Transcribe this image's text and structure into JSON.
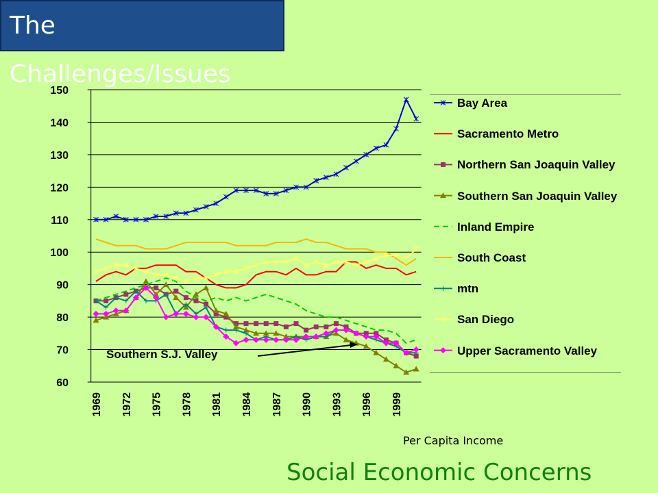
{
  "slide_title": "The Challenges/Issues",
  "footer": "Social Economic Concerns",
  "chart_data": {
    "type": "line",
    "title": "Per Capita Income",
    "categories": [
      "1969",
      null,
      null,
      "1972",
      null,
      null,
      "1975",
      null,
      null,
      "1978",
      null,
      null,
      "1981",
      null,
      null,
      "1984",
      null,
      null,
      "1987",
      null,
      null,
      "1990",
      null,
      null,
      "1993",
      null,
      null,
      "1996",
      null,
      null,
      "1999",
      null,
      null
    ],
    "ylim": [
      60,
      150
    ],
    "yticks": [
      60,
      70,
      80,
      90,
      100,
      110,
      120,
      130,
      140,
      150
    ],
    "grid": true,
    "annotations": [
      {
        "text": "Southern S.J. Valley"
      }
    ],
    "series": [
      {
        "name": "Bay Area",
        "color": "#0000cc",
        "marker": "star",
        "values": [
          110,
          110,
          111,
          110,
          110,
          110,
          111,
          111,
          112,
          112,
          113,
          114,
          115,
          117,
          119,
          119,
          119,
          118,
          118,
          119,
          120,
          120,
          122,
          123,
          124,
          126,
          128,
          130,
          132,
          133,
          138,
          147,
          141
        ]
      },
      {
        "name": "Sacramento Metro",
        "color": "#ff0000",
        "marker": "none",
        "values": [
          91,
          93,
          94,
          93,
          95,
          95,
          96,
          96,
          96,
          94,
          94,
          92,
          90,
          89,
          89,
          90,
          93,
          94,
          94,
          93,
          95,
          93,
          93,
          94,
          94,
          97,
          97,
          95,
          96,
          95,
          95,
          93,
          94
        ]
      },
      {
        "name": "Northern San Joaquin Valley",
        "color": "#993366",
        "marker": "square",
        "values": [
          85,
          85,
          86,
          87,
          88,
          89,
          89,
          87,
          88,
          86,
          85,
          84,
          81,
          80,
          78,
          78,
          78,
          78,
          78,
          77,
          78,
          76,
          77,
          77,
          78,
          77,
          75,
          75,
          75,
          73,
          72,
          69,
          68
        ]
      },
      {
        "name": "Southern San Joaquin Valley",
        "color": "#808000",
        "marker": "triangle",
        "values": [
          79,
          80,
          81,
          82,
          86,
          91,
          87,
          90,
          86,
          83,
          87,
          89,
          82,
          81,
          77,
          76,
          75,
          75,
          75,
          74,
          74,
          74,
          74,
          74,
          75,
          73,
          72,
          71,
          69,
          67,
          65,
          63,
          64
        ]
      },
      {
        "name": "Inland Empire",
        "color": "#00cc00",
        "marker": "none",
        "dash": true,
        "values": [
          85,
          86,
          87,
          88,
          89,
          90,
          91,
          92,
          91,
          88,
          86,
          85,
          86,
          85,
          86,
          85,
          86,
          87,
          86,
          85,
          84,
          82,
          81,
          80,
          80,
          79,
          78,
          77,
          76,
          76,
          75,
          72,
          73
        ]
      },
      {
        "name": "South Coast",
        "color": "#f5b800",
        "marker": "none",
        "values": [
          104,
          103,
          102,
          102,
          102,
          101,
          101,
          101,
          102,
          103,
          103,
          103,
          103,
          103,
          102,
          102,
          102,
          102,
          103,
          103,
          103,
          104,
          103,
          103,
          102,
          101,
          101,
          101,
          100,
          100,
          98,
          96,
          98
        ]
      },
      {
        "name": "mtn",
        "color": "#008080",
        "marker": "plus",
        "values": [
          85,
          83,
          86,
          85,
          88,
          85,
          85,
          87,
          81,
          84,
          81,
          83,
          77,
          76,
          76,
          75,
          73,
          74,
          73,
          73,
          74,
          73,
          74,
          74,
          76,
          76,
          75,
          74,
          73,
          72,
          71,
          69,
          69
        ]
      },
      {
        "name": "San Diego",
        "color": "#ffff66",
        "marker": "star",
        "values": [
          94,
          95,
          96,
          96,
          95,
          94,
          93,
          93,
          92,
          91,
          92,
          92,
          93,
          94,
          94,
          95,
          96,
          97,
          97,
          97,
          98,
          96,
          97,
          96,
          97,
          97,
          96,
          97,
          98,
          99,
          99,
          98,
          101
        ]
      },
      {
        "name": "Upper Sacramento Valley",
        "color": "#ff00ff",
        "marker": "diamond",
        "values": [
          81,
          81,
          82,
          82,
          86,
          89,
          86,
          80,
          81,
          81,
          80,
          80,
          77,
          74,
          72,
          73,
          73,
          73,
          73,
          73,
          73,
          74,
          74,
          75,
          76,
          76,
          75,
          74,
          74,
          72,
          72,
          69,
          70
        ]
      }
    ]
  }
}
